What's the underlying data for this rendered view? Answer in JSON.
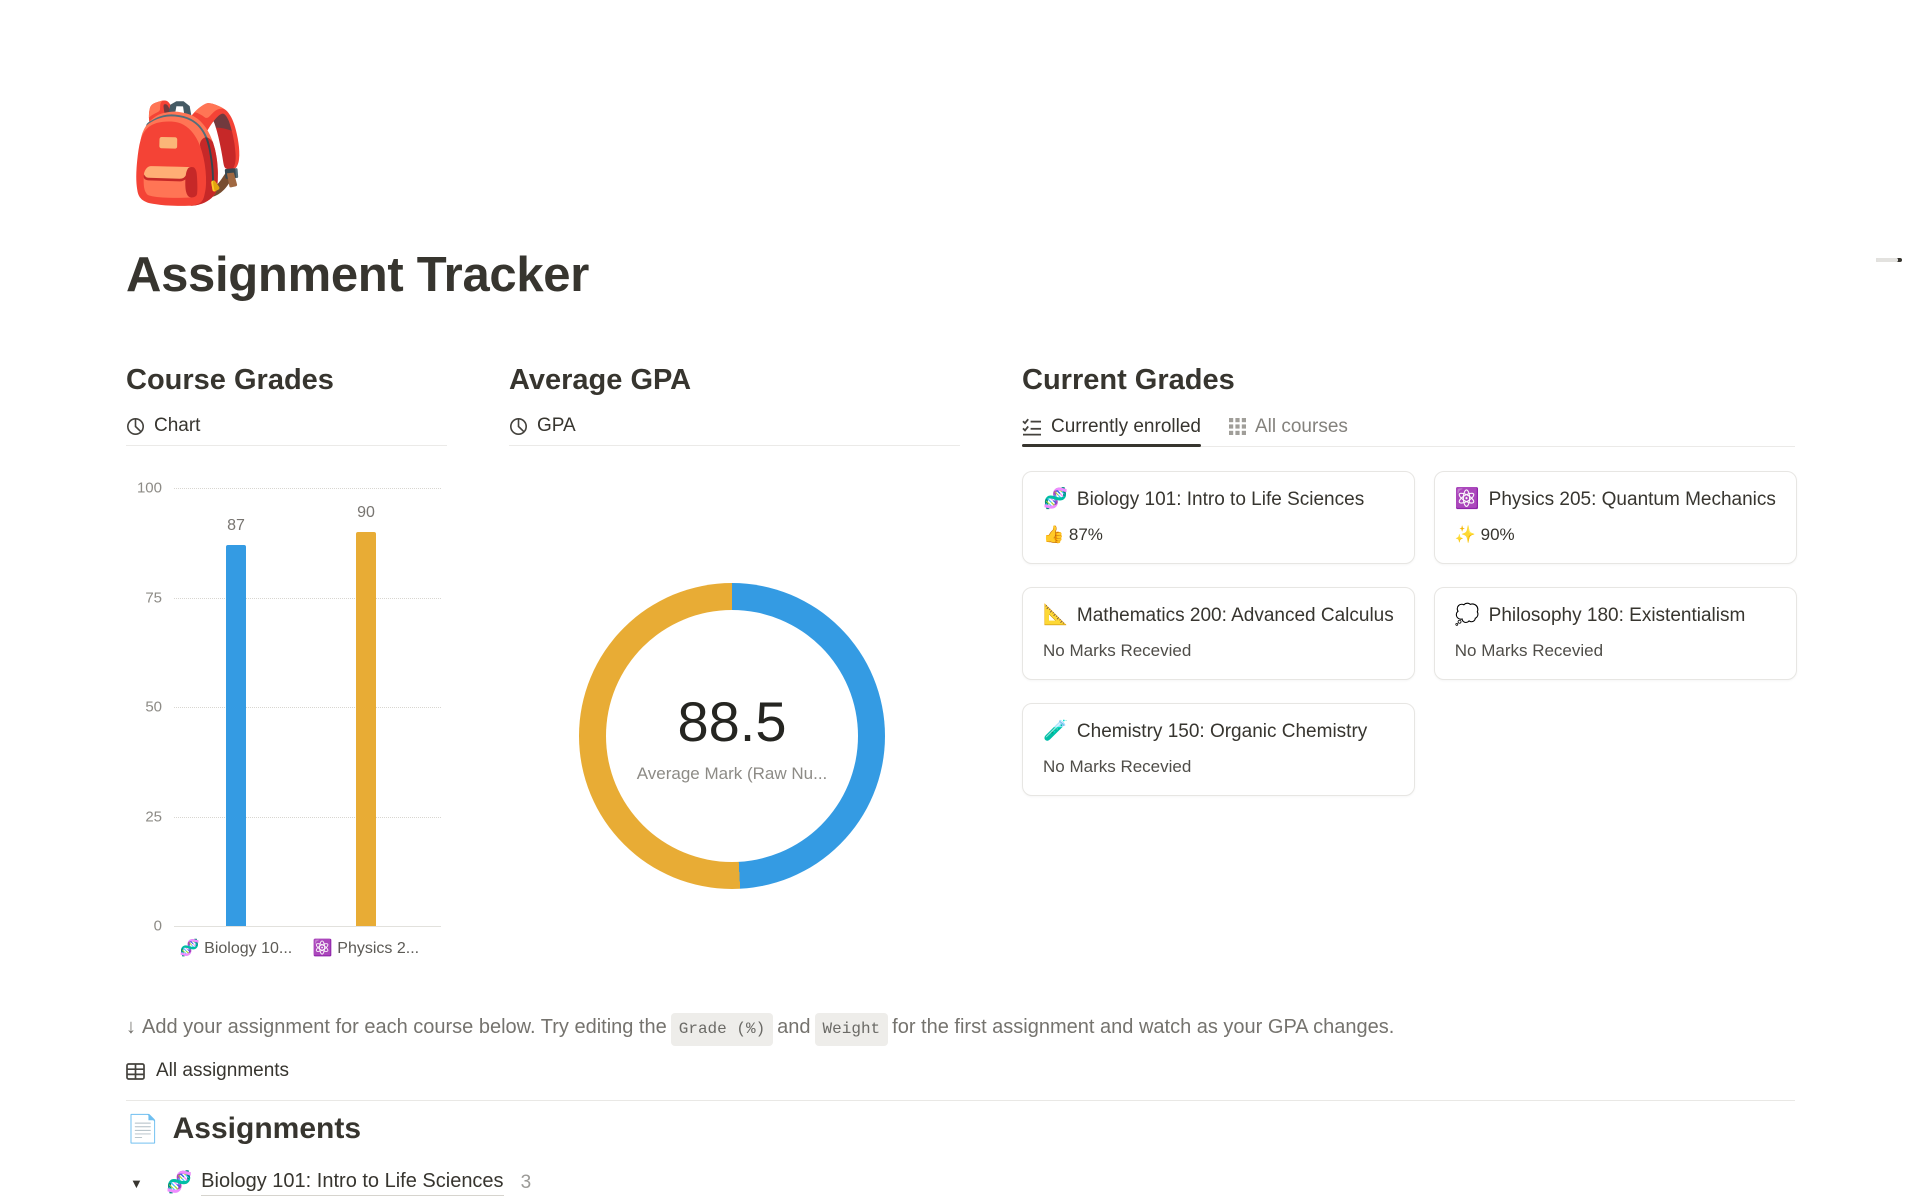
{
  "page": {
    "emoji": "🎒",
    "title": "Assignment Tracker"
  },
  "colors": {
    "accent_blue": "#349be3",
    "accent_yellow": "#e8ac35",
    "text": "#37352f",
    "muted_text": "#787774"
  },
  "course_grades": {
    "heading": "Course Grades",
    "view_label": "Chart"
  },
  "average_gpa": {
    "heading": "Average GPA",
    "view_label": "GPA"
  },
  "current_grades": {
    "heading": "Current Grades",
    "tabs": [
      {
        "label": "Currently enrolled",
        "active": true
      },
      {
        "label": "All courses",
        "active": false
      }
    ],
    "cards": [
      {
        "emoji": "🧬",
        "title": "Biology 101: Intro to Life Sciences",
        "status": "👍 87%"
      },
      {
        "emoji": "⚛️",
        "title": "Physics 205: Quantum Mechanics",
        "status": "✨ 90%"
      },
      {
        "emoji": "📐",
        "title": "Mathematics 200: Advanced Calculus",
        "status": "No Marks Recevied"
      },
      {
        "emoji": "💭",
        "title": "Philosophy 180: Existentialism",
        "status": "No Marks Recevied"
      },
      {
        "emoji": "🧪",
        "title": "Chemistry 150: Organic Chemistry",
        "status": "No Marks Recevied"
      }
    ]
  },
  "note": {
    "arrow": "↓",
    "text_1": "Add your assignment for each course below. Try editing the",
    "code_1": "Grade (%)",
    "text_2": "and",
    "code_2": "Weight",
    "text_3": "for the first assignment and watch as your GPA changes."
  },
  "all_assignments": {
    "label": "All assignments"
  },
  "assignments": {
    "emoji": "📄",
    "heading": "Assignments"
  },
  "assignment_groups": [
    {
      "toggle": "▼",
      "emoji": "🧬",
      "title": "Biology 101: Intro to Life Sciences",
      "count": "3"
    }
  ],
  "chart_data": [
    {
      "type": "bar",
      "title": "Course Grades — Chart",
      "categories": [
        "🧬 Biology 10...",
        "⚛️ Physics 2..."
      ],
      "values": [
        87,
        90
      ],
      "value_labels": [
        "87",
        "90"
      ],
      "bar_colors": [
        "#349be3",
        "#e8ac35"
      ],
      "xlabel": "",
      "ylabel": "",
      "ylim": [
        0,
        100
      ],
      "yticks": [
        0,
        25,
        50,
        75,
        100
      ],
      "grid": "horizontal-dotted",
      "legend": "none"
    },
    {
      "type": "pie",
      "title": "Average GPA — GPA",
      "donut": true,
      "center_value": "88.5",
      "center_label": "Average Mark (Raw Nu...",
      "segments": [
        {
          "name": "Biology 101: Intro to Life Sciences",
          "value": 87,
          "color": "#349be3"
        },
        {
          "name": "Physics 205: Quantum Mechanics",
          "value": 90,
          "color": "#e8ac35"
        }
      ],
      "start_angle_deg": 0,
      "direction": "clockwise",
      "legend": "none"
    }
  ]
}
